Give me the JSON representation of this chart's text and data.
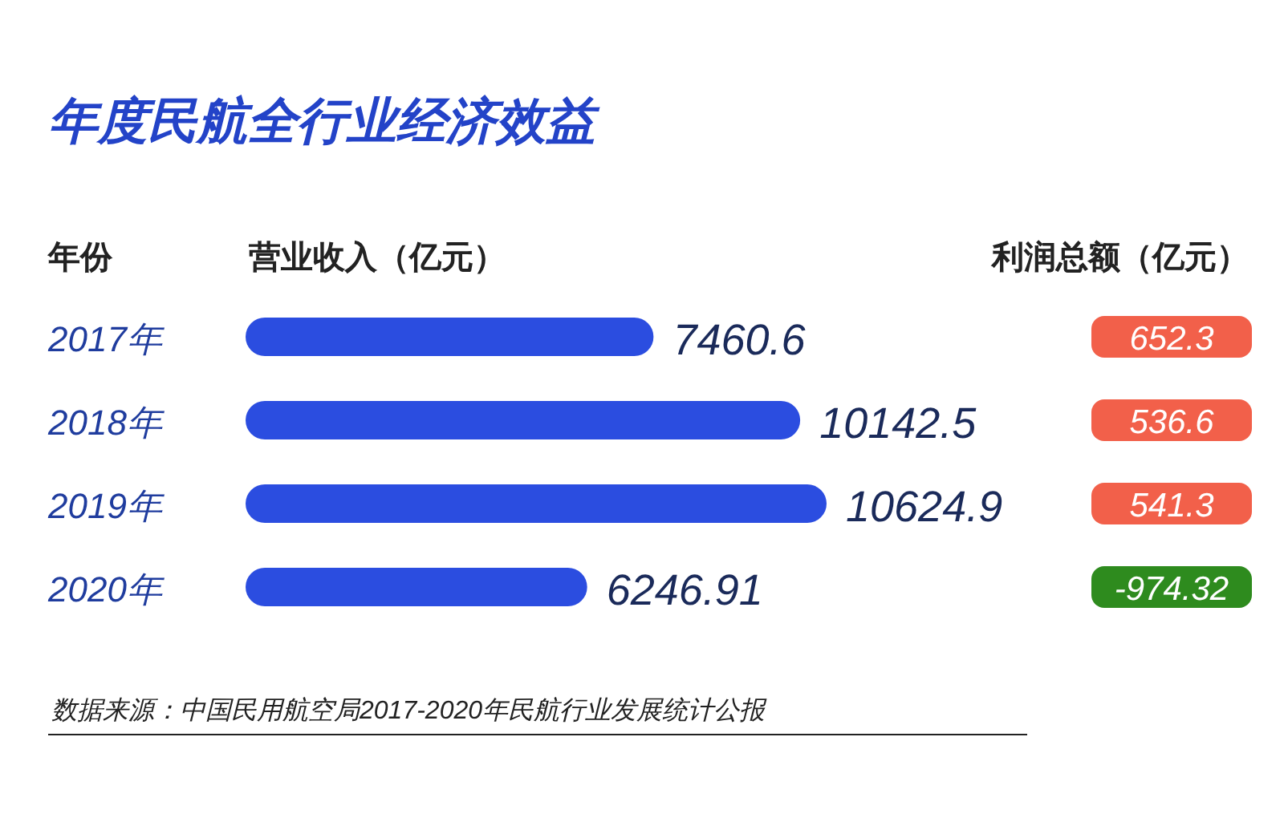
{
  "chart_data": [
    {
      "type": "bar",
      "orientation": "horizontal",
      "title": "年度民航全行业经济效益",
      "ylabel": "年份",
      "xlabel": "营业收入（亿元）",
      "categories": [
        "2017年",
        "2018年",
        "2019年",
        "2020年"
      ],
      "values": [
        7460.6,
        10142.5,
        10624.9,
        6246.91
      ],
      "color": "#2b4de0",
      "data_labels": true,
      "annotations": [
        "数据来源：中国民用航空局2017-2020年民航行业发展统计公报"
      ]
    },
    {
      "type": "other",
      "title": "利润总额（亿元）",
      "values": [
        652.3,
        536.6,
        541.3,
        -974.32
      ],
      "value_labels": [
        "652.3",
        "536.6",
        "541.3",
        "-974.32"
      ],
      "colors": [
        "#f2604a",
        "#f2604a",
        "#f2604a",
        "#2e8b1e"
      ]
    }
  ]
}
